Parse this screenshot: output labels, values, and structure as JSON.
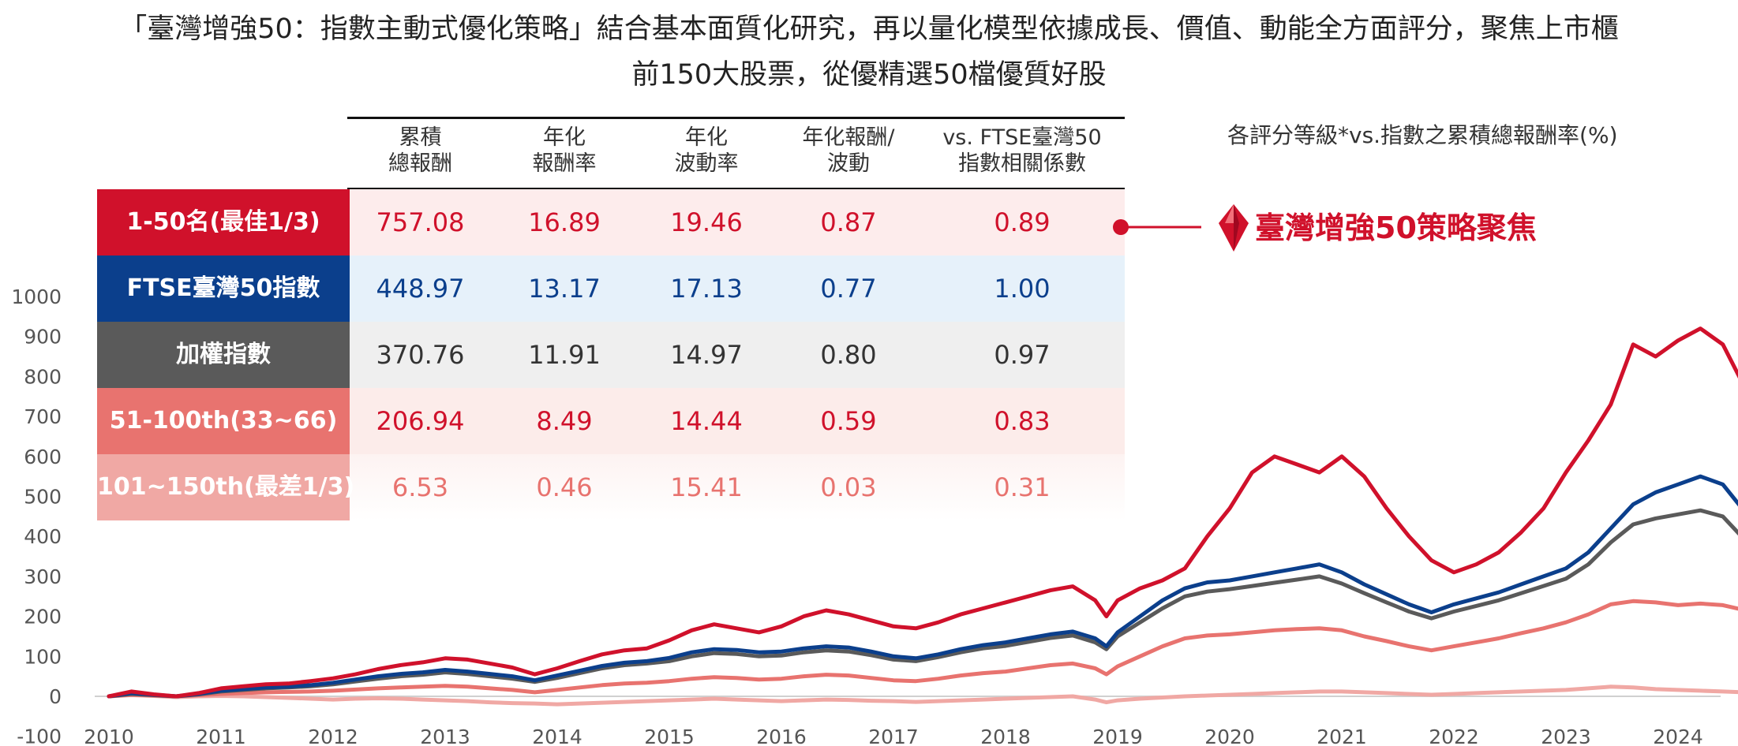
{
  "title": {
    "line1": "「臺灣增強50：指數主動式優化策略」結合基本面質化研究，再以量化模型依據成長、價值、動能全方面評分，聚焦上市櫃",
    "line2": "前150大股票，從優精選50檔優質好股"
  },
  "colors": {
    "top": "#d0112b",
    "ftse": "#0b3f8c",
    "taiex": "#5a5a5a",
    "mid": "#e8736f",
    "bottom": "#f0a8a4"
  },
  "table": {
    "headers": [
      "累積\n總報酬",
      "年化\n報酬率",
      "年化\n波動率",
      "年化報酬/\n波動",
      "vs. FTSE臺灣50\n指數相關係數"
    ],
    "rows": [
      {
        "label": "1-50名(最佳1/3)",
        "values": [
          "757.08",
          "16.89",
          "19.46",
          "0.87",
          "0.89"
        ]
      },
      {
        "label": "FTSE臺灣50指數",
        "values": [
          "448.97",
          "13.17",
          "17.13",
          "0.77",
          "1.00"
        ]
      },
      {
        "label": "加權指數",
        "values": [
          "370.76",
          "11.91",
          "14.97",
          "0.80",
          "0.97"
        ]
      },
      {
        "label": "51-100th(33~66)",
        "values": [
          "206.94",
          "8.49",
          "14.44",
          "0.59",
          "0.83"
        ]
      },
      {
        "label": "101~150th(最差1/3)",
        "values": [
          "6.53",
          "0.46",
          "15.41",
          "0.03",
          "0.31"
        ]
      }
    ]
  },
  "legend": {
    "subtitle": "各評分等級*vs.指數之累積總報酬率(%)",
    "callout": "臺灣增強50策略聚焦"
  },
  "chart_data": {
    "type": "line",
    "title": "各評分等級*vs.指數之累積總報酬率(%)",
    "xlabel": "",
    "ylabel": "",
    "ylim": [
      -100,
      1000
    ],
    "xlim": [
      2010,
      2024.6
    ],
    "x_ticks": [
      "2010",
      "2011",
      "2012",
      "2013",
      "2014",
      "2015",
      "2016",
      "2017",
      "2018",
      "2019",
      "2020",
      "2021",
      "2022",
      "2023",
      "2024"
    ],
    "y_ticks": [
      "-100",
      "0",
      "100",
      "200",
      "300",
      "400",
      "500",
      "600",
      "700",
      "800",
      "900",
      "1000"
    ],
    "x": [
      2010.0,
      2010.2,
      2010.4,
      2010.6,
      2010.8,
      2011.0,
      2011.2,
      2011.4,
      2011.6,
      2011.8,
      2012.0,
      2012.2,
      2012.4,
      2012.6,
      2012.8,
      2013.0,
      2013.2,
      2013.4,
      2013.6,
      2013.8,
      2014.0,
      2014.2,
      2014.4,
      2014.6,
      2014.8,
      2015.0,
      2015.2,
      2015.4,
      2015.6,
      2015.8,
      2016.0,
      2016.2,
      2016.4,
      2016.6,
      2016.8,
      2017.0,
      2017.2,
      2017.4,
      2017.6,
      2017.8,
      2018.0,
      2018.2,
      2018.4,
      2018.6,
      2018.8,
      2018.9,
      2019.0,
      2019.2,
      2019.4,
      2019.6,
      2019.8,
      2020.0,
      2020.2,
      2020.4,
      2020.6,
      2020.8,
      2021.0,
      2021.2,
      2021.4,
      2021.6,
      2021.8,
      2022.0,
      2022.2,
      2022.4,
      2022.6,
      2022.8,
      2023.0,
      2023.2,
      2023.4,
      2023.6,
      2023.8,
      2024.0,
      2024.2,
      2024.4,
      2024.6
    ],
    "series": [
      {
        "name": "1-50名(最佳1/3)",
        "values": [
          0,
          12,
          5,
          0,
          8,
          20,
          25,
          30,
          32,
          38,
          45,
          55,
          68,
          78,
          85,
          95,
          92,
          82,
          72,
          55,
          70,
          88,
          105,
          115,
          120,
          140,
          165,
          180,
          170,
          160,
          175,
          200,
          215,
          205,
          190,
          175,
          170,
          185,
          205,
          220,
          235,
          250,
          265,
          275,
          240,
          200,
          240,
          270,
          290,
          320,
          400,
          470,
          560,
          600,
          580,
          560,
          600,
          550,
          470,
          400,
          340,
          310,
          330,
          360,
          410,
          470,
          560,
          640,
          730,
          880,
          850,
          890,
          920,
          880,
          770
        ]
      },
      {
        "name": "FTSE臺灣50指數",
        "values": [
          0,
          8,
          4,
          0,
          6,
          14,
          18,
          22,
          24,
          28,
          34,
          42,
          50,
          56,
          60,
          66,
          62,
          56,
          50,
          40,
          52,
          64,
          76,
          84,
          88,
          96,
          110,
          118,
          116,
          110,
          112,
          120,
          125,
          122,
          112,
          100,
          95,
          105,
          118,
          128,
          135,
          145,
          155,
          162,
          145,
          125,
          160,
          200,
          240,
          270,
          285,
          290,
          300,
          310,
          320,
          330,
          310,
          280,
          255,
          230,
          210,
          230,
          245,
          260,
          280,
          300,
          320,
          360,
          420,
          480,
          510,
          530,
          550,
          530,
          460
        ]
      },
      {
        "name": "加權指數",
        "values": [
          0,
          6,
          3,
          0,
          5,
          12,
          16,
          20,
          22,
          25,
          30,
          37,
          44,
          50,
          54,
          60,
          56,
          50,
          44,
          36,
          46,
          58,
          70,
          78,
          82,
          88,
          100,
          108,
          106,
          100,
          102,
          110,
          115,
          112,
          103,
          92,
          88,
          98,
          110,
          120,
          126,
          136,
          146,
          152,
          135,
          118,
          150,
          185,
          220,
          250,
          262,
          268,
          276,
          284,
          292,
          300,
          282,
          258,
          235,
          212,
          195,
          212,
          226,
          240,
          258,
          276,
          294,
          330,
          385,
          430,
          445,
          455,
          465,
          450,
          390
        ]
      },
      {
        "name": "51-100th(33~66)",
        "values": [
          0,
          4,
          2,
          0,
          3,
          6,
          8,
          10,
          11,
          12,
          14,
          17,
          20,
          22,
          24,
          26,
          24,
          20,
          16,
          10,
          16,
          22,
          28,
          32,
          34,
          38,
          44,
          48,
          46,
          42,
          44,
          50,
          54,
          52,
          46,
          40,
          38,
          44,
          52,
          58,
          62,
          70,
          78,
          82,
          70,
          55,
          75,
          100,
          125,
          145,
          152,
          155,
          160,
          165,
          168,
          170,
          165,
          150,
          138,
          125,
          115,
          125,
          135,
          145,
          158,
          170,
          185,
          205,
          230,
          238,
          235,
          228,
          232,
          228,
          215
        ]
      },
      {
        "name": "101~150th(最差1/3)",
        "values": [
          0,
          3,
          1,
          -2,
          0,
          1,
          0,
          -2,
          -4,
          -6,
          -8,
          -6,
          -5,
          -6,
          -8,
          -10,
          -12,
          -15,
          -17,
          -18,
          -20,
          -18,
          -16,
          -14,
          -12,
          -10,
          -8,
          -6,
          -8,
          -10,
          -12,
          -10,
          -8,
          -9,
          -11,
          -12,
          -14,
          -12,
          -10,
          -8,
          -6,
          -4,
          -2,
          0,
          -8,
          -15,
          -10,
          -6,
          -3,
          0,
          2,
          4,
          6,
          8,
          10,
          12,
          12,
          10,
          8,
          6,
          4,
          6,
          8,
          10,
          12,
          14,
          16,
          20,
          24,
          22,
          18,
          16,
          14,
          12,
          10
        ]
      }
    ]
  }
}
